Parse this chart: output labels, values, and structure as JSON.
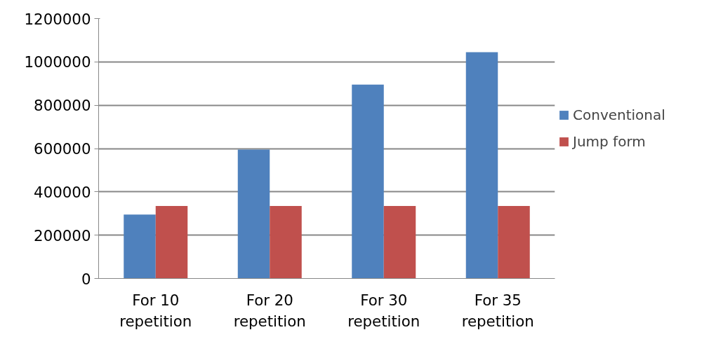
{
  "chart_data": {
    "type": "bar",
    "categories": [
      "For 10 repetition",
      "For 20 repetition",
      "For 30 repetition",
      "For 35 repetition"
    ],
    "series": [
      {
        "name": "Conventional",
        "color": "#4f81bd",
        "values": [
          295000,
          595000,
          895000,
          1045000
        ]
      },
      {
        "name": "Jump form",
        "color": "#c0504d",
        "values": [
          335000,
          335000,
          335000,
          335000
        ]
      }
    ],
    "ylim": [
      0,
      1200000
    ],
    "yticks": [
      0,
      200000,
      400000,
      600000,
      800000,
      1000000,
      1200000
    ],
    "grid": "y",
    "legend": "right"
  }
}
